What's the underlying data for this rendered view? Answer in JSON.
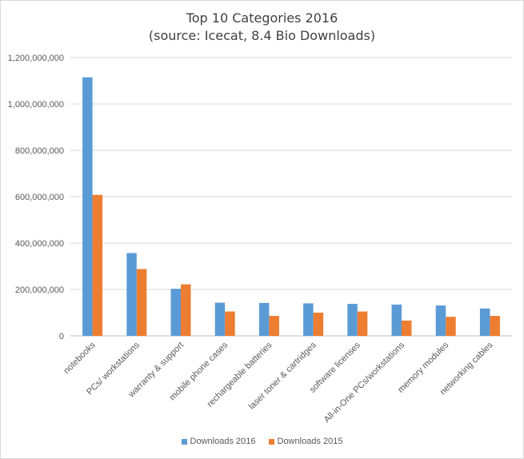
{
  "colors": {
    "s2016": "#5b9bd5",
    "s2015": "#ed7d31",
    "grid": "#d9d9d9",
    "axis": "#bfbfbf"
  },
  "chart_data": {
    "type": "bar",
    "title": "Top 10 Categories 2016",
    "subtitle": "(source: Icecat, 8.4 Bio Downloads)",
    "categories": [
      "notebooks",
      "PCs/ workstations",
      "warranty & support",
      "mobile phone cases",
      "rechargeable batteries",
      "laser toner & cartridges",
      "software licenses",
      "All-in-One PCs/workstations",
      "memory modules",
      "networking cables"
    ],
    "series": [
      {
        "name": "Downloads 2016",
        "values": [
          1115000000,
          357000000,
          203000000,
          143000000,
          142000000,
          140000000,
          138000000,
          135000000,
          131000000,
          118000000
        ]
      },
      {
        "name": "Downloads 2015",
        "values": [
          608000000,
          288000000,
          222000000,
          105000000,
          86000000,
          100000000,
          105000000,
          66000000,
          82000000,
          86000000
        ]
      }
    ],
    "y_ticks": [
      "0",
      "200,000,000",
      "400,000,000",
      "600,000,000",
      "800,000,000",
      "1,000,000,000",
      "1,200,000,000"
    ],
    "ylim": [
      0,
      1200000000
    ],
    "grid": true,
    "legend_position": "bottom"
  }
}
